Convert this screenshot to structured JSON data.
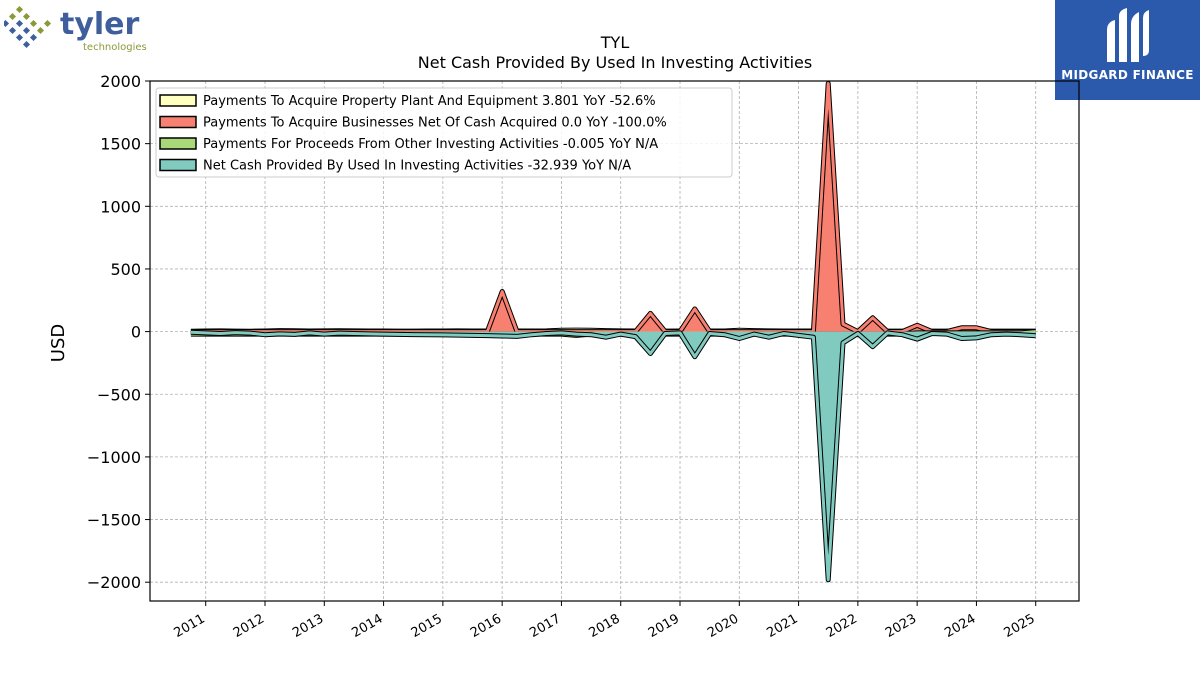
{
  "logo": {
    "company_text": "tyler",
    "company_subtext": "technologies",
    "brand_text": "MIDGARD FINANCE"
  },
  "colors": {
    "ppe": "#ffffc0",
    "businesses": "#f88070",
    "other": "#a8d878",
    "net": "#80cac0"
  },
  "chart_data": {
    "type": "area",
    "title": "TYL",
    "subtitle": "Net Cash Provided By Used In Investing Activities",
    "ylabel": "USD",
    "xlabel": "",
    "ylim": [
      -2150,
      2000
    ],
    "yticks": [
      -2000,
      -1500,
      -1000,
      -500,
      0,
      500,
      1000,
      1500,
      2000
    ],
    "ytick_labels": [
      "−2000",
      "−1500",
      "−1000",
      "−500",
      "0",
      "500",
      "1000",
      "1500",
      "2000"
    ],
    "xlim": [
      2010.06,
      2025.73
    ],
    "xticks": [
      2011,
      2012,
      2013,
      2014,
      2015,
      2016,
      2017,
      2018,
      2019,
      2020,
      2021,
      2022,
      2023,
      2024,
      2025
    ],
    "xtick_labels": [
      "2011",
      "2012",
      "2013",
      "2014",
      "2015",
      "2016",
      "2017",
      "2018",
      "2019",
      "2020",
      "2021",
      "2022",
      "2023",
      "2024",
      "2025"
    ],
    "grid": true,
    "legend_position": "top-left",
    "x": [
      2010.75,
      2011.0,
      2011.25,
      2011.5,
      2011.75,
      2012.0,
      2012.25,
      2012.5,
      2012.75,
      2013.0,
      2013.25,
      2013.5,
      2013.75,
      2014.0,
      2014.25,
      2014.5,
      2014.75,
      2015.0,
      2015.25,
      2015.5,
      2015.75,
      2016.0,
      2016.25,
      2016.5,
      2016.75,
      2017.0,
      2017.25,
      2017.5,
      2017.75,
      2018.0,
      2018.25,
      2018.5,
      2018.75,
      2019.0,
      2019.25,
      2019.5,
      2019.75,
      2020.0,
      2020.25,
      2020.5,
      2020.75,
      2021.0,
      2021.25,
      2021.5,
      2021.75,
      2022.0,
      2022.25,
      2022.5,
      2022.75,
      2023.0,
      2023.25,
      2023.5,
      2023.75,
      2024.0,
      2024.25,
      2024.5,
      2024.75,
      2025.0
    ],
    "series": [
      {
        "name": "Payments To Acquire Property Plant And Equipment  3.801 YoY -52.6%",
        "color_key": "ppe",
        "values": [
          3,
          5,
          6,
          4,
          3,
          5,
          8,
          7,
          5,
          6,
          7,
          6,
          5,
          5,
          4,
          4,
          5,
          5,
          6,
          5,
          5,
          5,
          5,
          5,
          6,
          10,
          12,
          10,
          8,
          6,
          5,
          4,
          4,
          5,
          5,
          5,
          5,
          10,
          8,
          6,
          5,
          5,
          5,
          5,
          4,
          4,
          4,
          4,
          4,
          4,
          4,
          4,
          5,
          5,
          4,
          4,
          4,
          3.801
        ]
      },
      {
        "name": "Payments To Acquire Businesses Net Of Cash Acquired  0.0 YoY -100.0%",
        "color_key": "businesses",
        "values": [
          0,
          0,
          0,
          0,
          0,
          0,
          0,
          0,
          0,
          0,
          0,
          0,
          0,
          0,
          0,
          0,
          0,
          0,
          0,
          0,
          0,
          320,
          0,
          0,
          0,
          0,
          0,
          0,
          0,
          0,
          0,
          145,
          0,
          0,
          180,
          0,
          0,
          0,
          0,
          0,
          0,
          0,
          0,
          1980,
          60,
          0,
          110,
          0,
          0,
          50,
          0,
          0,
          30,
          30,
          0,
          0,
          0,
          0.0
        ]
      },
      {
        "name": "Payments For Proceeds From Other Investing Activities  -0.005 YoY N/A",
        "color_key": "other",
        "values": [
          -20,
          -20,
          -20,
          -20,
          -20,
          -20,
          -20,
          -20,
          -20,
          -20,
          -20,
          -20,
          -20,
          -20,
          -20,
          -20,
          -20,
          -20,
          -20,
          -20,
          -20,
          -20,
          -20,
          -20,
          -20,
          -20,
          -30,
          -20,
          -30,
          -20,
          -20,
          -30,
          -20,
          -20,
          -30,
          -20,
          -20,
          -30,
          -20,
          -20,
          -20,
          -20,
          -20,
          -20,
          -20,
          -20,
          -20,
          -20,
          -20,
          -10,
          -10,
          -10,
          -10,
          -10,
          -10,
          -10,
          -10,
          -0.005
        ]
      },
      {
        "name": "Net Cash Provided By Used In Investing Activities  -32.939 YoY N/A",
        "color_key": "net",
        "values": [
          -5,
          -10,
          -15,
          -8,
          -12,
          -25,
          -18,
          -22,
          -10,
          -20,
          -12,
          -15,
          -18,
          -20,
          -22,
          -24,
          -25,
          -26,
          -28,
          -30,
          -32,
          -35,
          -38,
          -25,
          -15,
          -10,
          -20,
          -25,
          -45,
          -20,
          -40,
          -175,
          -15,
          -10,
          -200,
          -15,
          -25,
          -55,
          -20,
          -45,
          -15,
          -30,
          -45,
          -1980,
          -90,
          -15,
          -120,
          -10,
          -25,
          -60,
          -15,
          -20,
          -55,
          -50,
          -25,
          -20,
          -25,
          -32.939
        ]
      }
    ]
  }
}
